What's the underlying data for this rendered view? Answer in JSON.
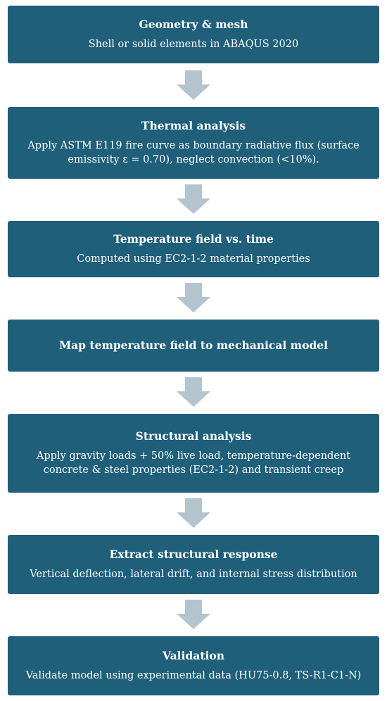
{
  "steps": [
    {
      "title": "Geometry & mesh",
      "description": "Shell or solid elements in ABAQUS 2020"
    },
    {
      "title": "Thermal analysis",
      "description": "Apply ASTM E119 fire curve as boundary radiative flux (surface emissivity ε = 0.70), neglect convection (<10%)."
    },
    {
      "title": "Temperature field vs. time",
      "description": "Computed using EC2-1-2 material properties"
    },
    {
      "title": "Map temperature field to mechanical model",
      "description": ""
    },
    {
      "title": "Structural analysis",
      "description": "Apply gravity loads + 50% live load, temperature-dependent concrete & steel properties (EC2-1-2) and transient creep"
    },
    {
      "title": "Extract structural response",
      "description": "Vertical deflection, lateral drift, and internal stress distribution"
    },
    {
      "title": "Validation",
      "description": "Validate model using experimental data (HU75-0.8, TS-R1-C1-N)"
    }
  ],
  "colors": {
    "box": "#1f5f7a",
    "text": "#ffffff",
    "arrow": "#b4c4ce"
  }
}
